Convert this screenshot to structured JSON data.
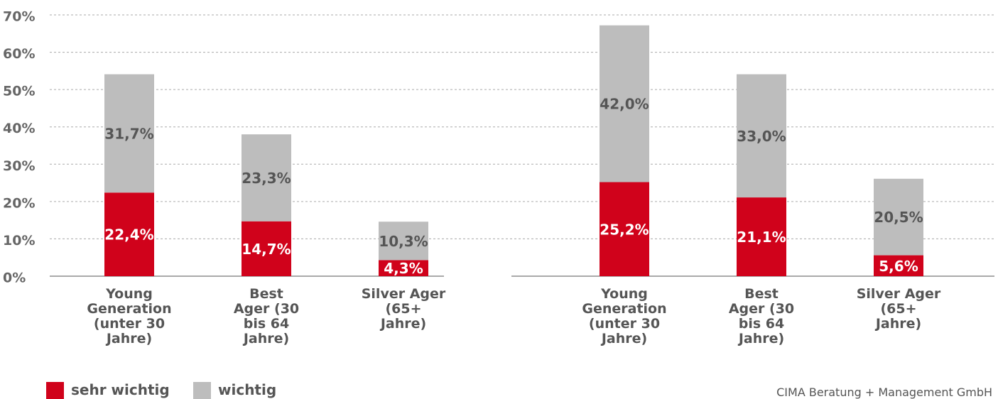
{
  "chart_data": {
    "type": "stacked_bar",
    "source": "CIMA Beratung + Management GmbH",
    "categories": [
      "Young Generation (unter 30 Jahre)",
      "Best Ager (30 bis 64 Jahre)",
      "Silver Ager (65+ Jahre)",
      "Young Generation (unter 30 Jahre)",
      "Best Ager (30 bis 64 Jahre)",
      "Silver Ager (65+ Jahre)"
    ],
    "series": [
      {
        "name": "sehr wichtig",
        "color": "#d0021b",
        "values": [
          22.4,
          14.7,
          4.3,
          25.2,
          21.1,
          5.6
        ],
        "value_labels": [
          "22,4%",
          "14,7%",
          "4,3%",
          "25,2%",
          "21,1%",
          "5,6%"
        ]
      },
      {
        "name": "wichtig",
        "color": "#bdbdbd",
        "values": [
          31.7,
          23.3,
          10.3,
          42.0,
          33.0,
          20.5
        ],
        "value_labels": [
          "31,7%",
          "23,3%",
          "10,3%",
          "42,0%",
          "33,0%",
          "20,5%"
        ]
      }
    ],
    "ylim": [
      0,
      70
    ],
    "yticks": [
      {
        "value": 0,
        "label": "0%"
      },
      {
        "value": 10,
        "label": "10%"
      },
      {
        "value": 20,
        "label": "20%"
      },
      {
        "value": 30,
        "label": "30%"
      },
      {
        "value": 40,
        "label": "40%"
      },
      {
        "value": 50,
        "label": "50%"
      },
      {
        "value": 60,
        "label": "60%"
      },
      {
        "value": 70,
        "label": "70%"
      }
    ],
    "grid": true
  }
}
